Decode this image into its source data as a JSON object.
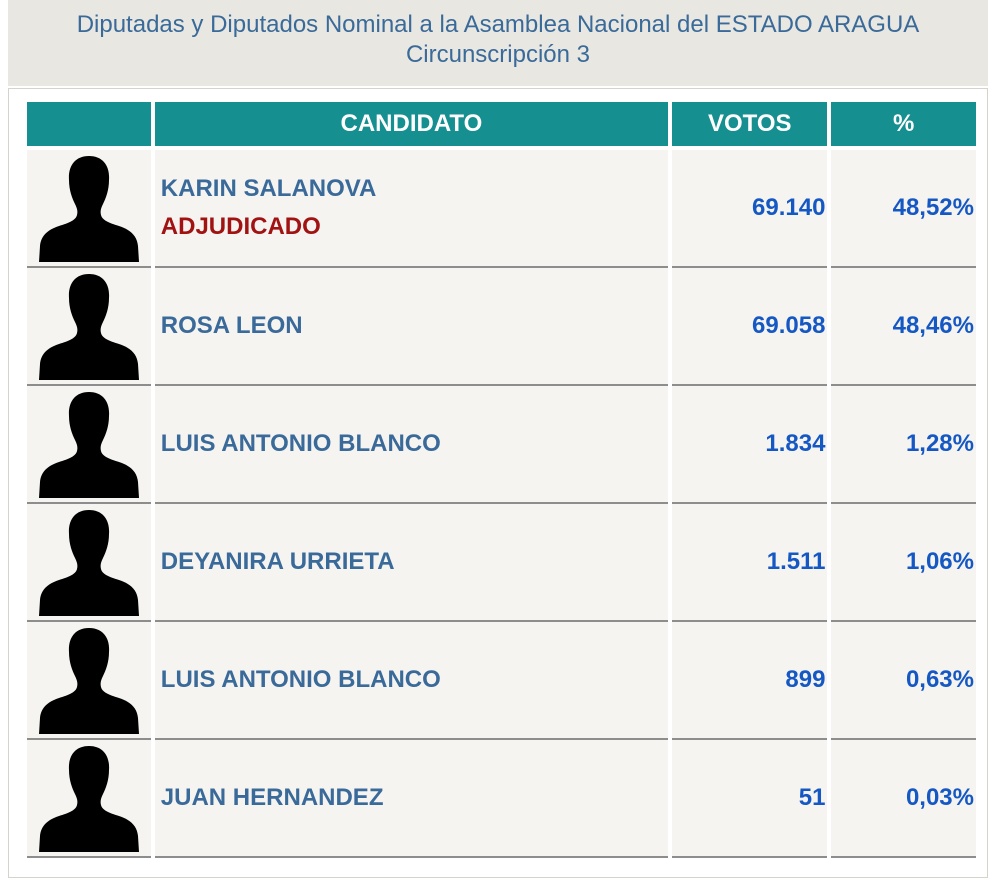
{
  "header": {
    "title": "Diputadas y Diputados Nominal a la Asamblea Nacional del ESTADO ARAGUA",
    "subtitle": "Circunscripción 3"
  },
  "table": {
    "columns": [
      "",
      "CANDIDATO",
      "VOTOS",
      "%"
    ],
    "rows": [
      {
        "name": "KARIN SALANOVA",
        "status": "ADJUDICADO",
        "votes": "69.140",
        "pct": "48,52%"
      },
      {
        "name": "ROSA LEON",
        "status": "",
        "votes": "69.058",
        "pct": "48,46%"
      },
      {
        "name": "LUIS ANTONIO BLANCO",
        "status": "",
        "votes": "1.834",
        "pct": "1,28%"
      },
      {
        "name": "DEYANIRA URRIETA",
        "status": "",
        "votes": "1.511",
        "pct": "1,06%"
      },
      {
        "name": "LUIS ANTONIO BLANCO",
        "status": "",
        "votes": "899",
        "pct": "0,63%"
      },
      {
        "name": "JUAN HERNANDEZ",
        "status": "",
        "votes": "51",
        "pct": "0,03%"
      }
    ]
  },
  "icons": {
    "avatar": "person-silhouette-icon"
  },
  "colors": {
    "header_bg": "#e8e7e1",
    "table_header_bg": "#168f91",
    "name_text": "#3a6a99",
    "status_text": "#a11212",
    "number_text": "#1558c4"
  }
}
